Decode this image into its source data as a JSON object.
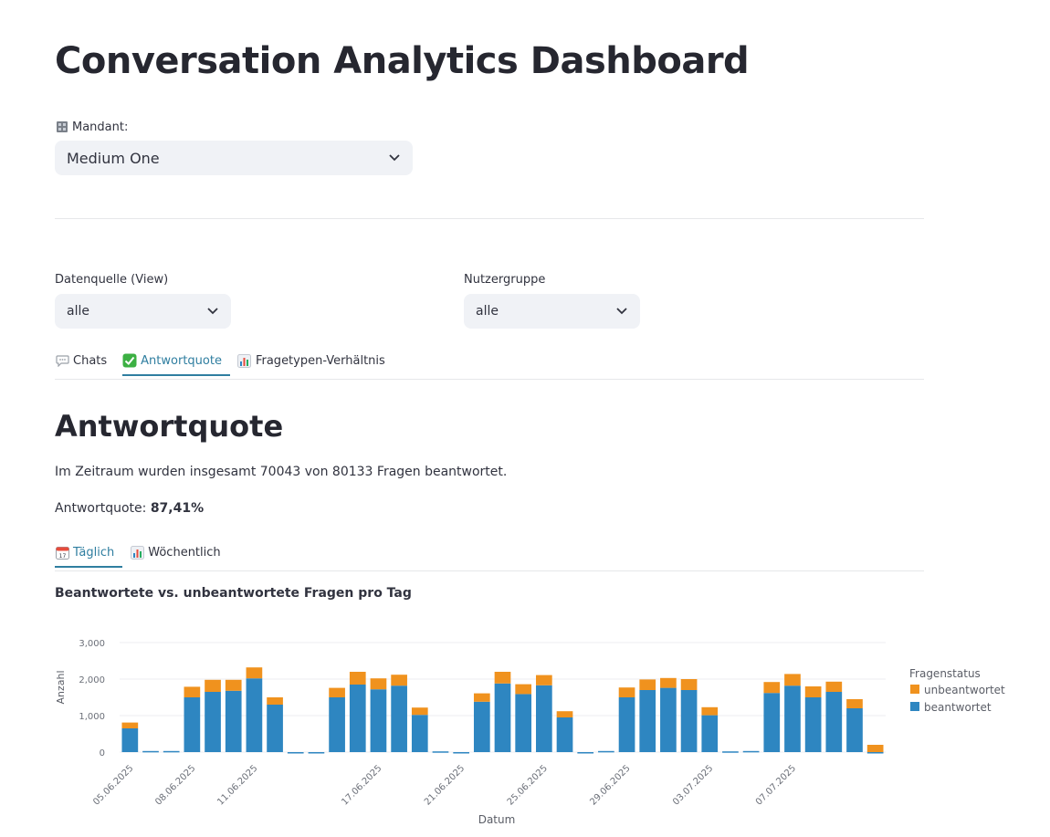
{
  "header": {
    "title": "Conversation Analytics Dashboard"
  },
  "mandant": {
    "label": "Mandant:",
    "icon": "building-icon",
    "value": "Medium One"
  },
  "filters": {
    "datenquelle": {
      "label": "Datenquelle (View)",
      "value": "alle"
    },
    "nutzergruppe": {
      "label": "Nutzergruppe",
      "value": "alle"
    }
  },
  "main_tabs": [
    {
      "label": "Chats",
      "icon": "speech-bubble-icon",
      "active": false
    },
    {
      "label": "Antwortquote",
      "icon": "check-mark-icon",
      "active": true
    },
    {
      "label": "Fragetypen-Verhältnis",
      "icon": "bar-chart-icon",
      "active": false
    }
  ],
  "section": {
    "title": "Antwortquote",
    "summary": "Im Zeitraum wurden insgesamt 70043 von 80133 Fragen beantwortet.",
    "rate_label": "Antwortquote:",
    "rate_value": "87,41%"
  },
  "sub_tabs": [
    {
      "label": "Täglich",
      "icon": "calendar-icon",
      "active": true
    },
    {
      "label": "Wöchentlich",
      "icon": "bar-chart-icon",
      "active": false
    }
  ],
  "colors": {
    "accent": "#2f7ea0",
    "beantwortet": "#2e86c1",
    "unbeantwortet": "#f0921e"
  },
  "chart_data": {
    "type": "bar",
    "stacked": true,
    "title": "Beantwortete vs. unbeantwortete Fragen pro Tag",
    "xlabel": "Datum",
    "ylabel": "Anzahl",
    "ylim": [
      0,
      3000
    ],
    "yticks": [
      "0",
      "1,000",
      "2,000",
      "3,000"
    ],
    "legend_title": "Fragenstatus",
    "legend_position": "right",
    "grid": true,
    "categories": [
      "05.06.2025",
      "06.06.2025",
      "07.06.2025",
      "08.06.2025",
      "09.06.2025",
      "10.06.2025",
      "11.06.2025",
      "12.06.2025",
      "13.06.2025",
      "14.06.2025",
      "15.06.2025",
      "16.06.2025",
      "17.06.2025",
      "18.06.2025",
      "19.06.2025",
      "20.06.2025",
      "21.06.2025",
      "22.06.2025",
      "23.06.2025",
      "24.06.2025",
      "25.06.2025",
      "26.06.2025",
      "27.06.2025",
      "28.06.2025",
      "29.06.2025",
      "30.06.2025",
      "01.07.2025",
      "02.07.2025",
      "03.07.2025",
      "04.07.2025",
      "05.07.2025",
      "06.07.2025",
      "07.07.2025",
      "08.07.2025",
      "09.07.2025",
      "10.07.2025",
      "11.07.2025"
    ],
    "x_tick_labels": [
      "05.06.2025",
      "08.06.2025",
      "11.06.2025",
      "17.06.2025",
      "21.06.2025",
      "25.06.2025",
      "29.06.2025",
      "03.07.2025",
      "07.07.2025"
    ],
    "series": [
      {
        "name": "unbeantwortet",
        "values": [
          160,
          0,
          0,
          290,
          330,
          300,
          300,
          200,
          0,
          0,
          260,
          350,
          300,
          300,
          200,
          0,
          0,
          230,
          320,
          270,
          280,
          170,
          0,
          0,
          270,
          290,
          270,
          300,
          220,
          0,
          0,
          300,
          320,
          300,
          280,
          250,
          200
        ]
      },
      {
        "name": "beantwortet",
        "values": [
          650,
          30,
          30,
          1500,
          1650,
          1680,
          2020,
          1300,
          0,
          0,
          1500,
          1850,
          1720,
          1820,
          1020,
          20,
          0,
          1380,
          1880,
          1590,
          1830,
          950,
          0,
          30,
          1500,
          1700,
          1760,
          1700,
          1010,
          20,
          30,
          1620,
          1820,
          1500,
          1650,
          1200,
          0
        ]
      }
    ]
  }
}
